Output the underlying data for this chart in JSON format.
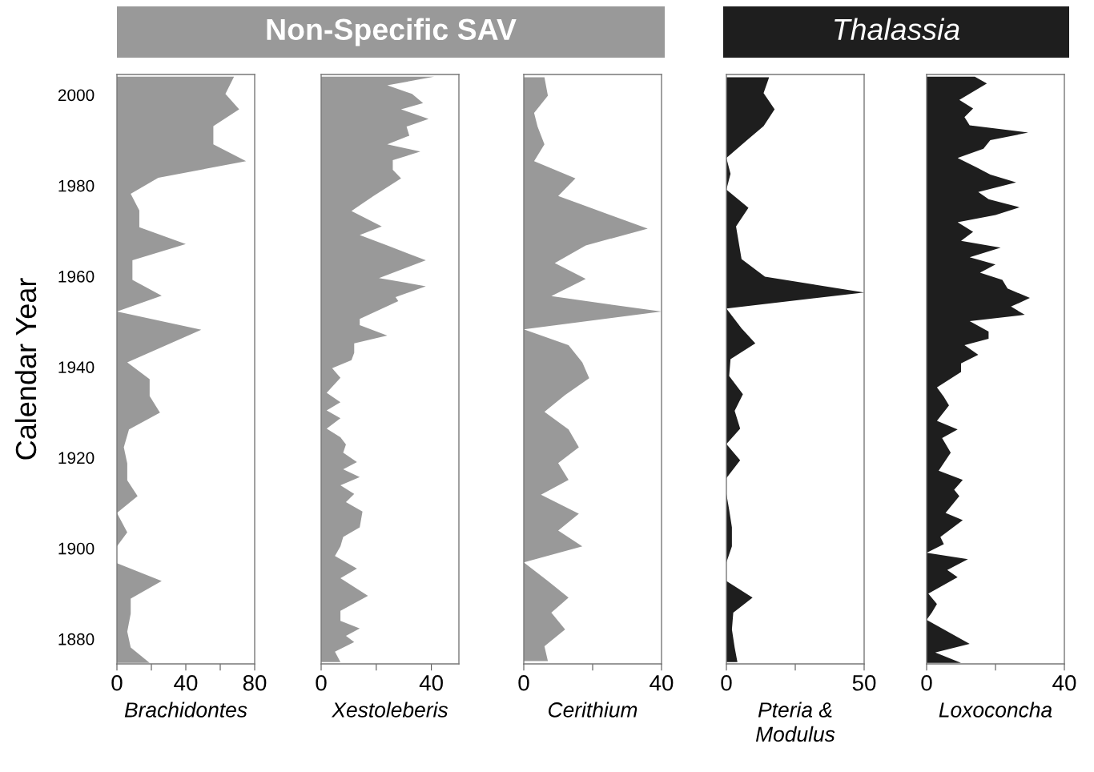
{
  "chart_data": [
    {
      "type": "area",
      "orientation": "horizontal",
      "xlabel": "Brachidontes",
      "ylabel": "Calendar Year",
      "color": "#999999",
      "x": [
        2004.0,
        2000.2,
        1996.8,
        1993.1,
        1989.1,
        1985.4,
        1981.7,
        1978.2,
        1974.5,
        1970.8,
        1967.1,
        1963.5,
        1959.2,
        1955.7,
        1952.2,
        1948.2,
        1941.0,
        1937.3,
        1933.6,
        1929.9,
        1926.2,
        1922.3,
        1918.7,
        1915.0,
        1911.5,
        1907.8,
        1903.5,
        1900.4,
        1896.7,
        1892.8,
        1888.9,
        1885.6,
        1881.6,
        1878.1,
        1874.7
      ],
      "values": [
        68,
        63,
        71,
        56,
        56,
        75,
        24,
        8,
        13,
        13,
        40,
        9,
        9,
        26,
        0,
        49,
        6,
        19,
        19,
        25,
        7,
        4,
        6,
        6,
        12,
        0,
        6,
        0,
        0,
        26,
        8,
        8,
        6,
        8,
        19
      ],
      "xlim": [
        0,
        80
      ],
      "xticks": [
        0,
        {
          "value": 20,
          "label": null
        },
        40,
        {
          "value": 60,
          "label": null
        },
        80
      ],
      "ylim": [
        1874.5,
        2004.5
      ],
      "yticks": [
        1880,
        1900,
        1920,
        1940,
        1960,
        1980,
        2000
      ],
      "grid": false,
      "legend": false
    },
    {
      "type": "area",
      "orientation": "horizontal",
      "title": "Non-Specific SAV",
      "xlabel": "Xestoleberis",
      "color": "#999999",
      "x": [
        2004.0,
        2002.1,
        2000.2,
        1998.2,
        1996.8,
        1994.7,
        1993.0,
        1991.0,
        1989.1,
        1987.5,
        1985.6,
        1983.5,
        1981.6,
        1977.7,
        1974.4,
        1971.0,
        1969.1,
        1966.8,
        1963.5,
        1959.6,
        1957.8,
        1955.4,
        1954.5,
        1950.6,
        1949.2,
        1946.9,
        1945.2,
        1943.1,
        1941.5,
        1939.7,
        1937.6,
        1934.3,
        1932.2,
        1930.4,
        1928.7,
        1926.4,
        1924.5,
        1922.9,
        1921.1,
        1919.0,
        1917.4,
        1915.7,
        1913.9,
        1912.0,
        1910.2,
        1908.1,
        1904.6,
        1902.5,
        1900.4,
        1898.3,
        1895.5,
        1893.4,
        1889.5,
        1886.2,
        1884.0,
        1882.3,
        1880.7,
        1879.3,
        1877.2,
        1874.9
      ],
      "values": [
        41,
        24,
        33,
        37,
        29,
        39,
        31,
        32,
        24,
        36,
        26,
        26,
        29,
        19,
        11,
        22,
        14,
        24,
        38,
        21,
        38,
        27,
        28,
        14,
        14,
        24,
        12,
        12,
        11,
        4,
        7,
        2,
        7,
        2,
        7,
        2,
        7,
        9,
        8,
        13,
        8,
        14,
        7,
        12,
        9,
        15,
        14,
        8,
        7,
        5,
        13,
        7,
        17,
        7,
        7,
        14,
        9,
        12,
        5,
        7
      ],
      "xlim": [
        0,
        50
      ],
      "xticks": [
        0,
        {
          "value": 20,
          "label": null
        },
        40
      ],
      "ylim": [
        1874.5,
        2004.5
      ],
      "tick_labels": "x",
      "grid": false,
      "legend": false
    },
    {
      "type": "area",
      "orientation": "horizontal",
      "xlabel": "Cerithium",
      "color": "#999999",
      "x": [
        2003.9,
        1999.8,
        1996.0,
        1993.0,
        1989.1,
        1985.4,
        1981.6,
        1977.7,
        1970.5,
        1966.8,
        1962.9,
        1959.4,
        1955.6,
        1952.2,
        1948.3,
        1944.8,
        1941.0,
        1937.5,
        1933.8,
        1930.1,
        1926.2,
        1922.3,
        1918.8,
        1915.1,
        1911.8,
        1907.6,
        1903.9,
        1900.4,
        1896.9,
        1892.8,
        1889.1,
        1885.8,
        1882.1,
        1878.4,
        1875.1
      ],
      "values": [
        6,
        7,
        3,
        4,
        6,
        3,
        15,
        10,
        36,
        18,
        9,
        18,
        8,
        40,
        0,
        13,
        17,
        19,
        12,
        6,
        13,
        16,
        10,
        13,
        5,
        16,
        10,
        17,
        0,
        7,
        13,
        8,
        12,
        6,
        7
      ],
      "xlim": [
        0,
        40
      ],
      "xticks": [
        0,
        {
          "value": 20,
          "label": null
        },
        40
      ],
      "ylim": [
        1874.5,
        2004.5
      ],
      "tick_labels": "x",
      "grid": false,
      "legend": false
    },
    {
      "type": "area",
      "orientation": "horizontal",
      "title": "Thalassia",
      "xlabel": "Pteria &\nModulus",
      "color": "#1e1e1e",
      "x": [
        2003.9,
        2000.4,
        1996.8,
        1993.1,
        1990.3,
        1986.1,
        1982.6,
        1979.1,
        1975.1,
        1971.0,
        1963.8,
        1959.9,
        1956.4,
        1952.9,
        1948.5,
        1945.2,
        1941.7,
        1938.0,
        1934.0,
        1930.3,
        1926.4,
        1923.0,
        1919.4,
        1915.5,
        1912.0,
        1908.5,
        1904.6,
        1900.4,
        1896.9,
        1892.8,
        1889.1,
        1885.8,
        1882.1,
        1878.1,
        1874.9
      ],
      "values": [
        15.5,
        13.5,
        17.5,
        13.5,
        8,
        0,
        1.5,
        0,
        8,
        3.5,
        5.5,
        14,
        50,
        0,
        5.5,
        10.5,
        1.5,
        1,
        6,
        3,
        5,
        0,
        5,
        0,
        0,
        1,
        2,
        2,
        0,
        0,
        9.5,
        2.5,
        2,
        3,
        4
      ],
      "xlim": [
        0,
        50
      ],
      "xticks": [
        0,
        {
          "value": 25,
          "label": null
        },
        50
      ],
      "ylim": [
        1874.5,
        2004.5
      ],
      "tick_labels": "x",
      "grid": false,
      "legend": false
    },
    {
      "type": "area",
      "orientation": "horizontal",
      "xlabel": "Loxoconcha",
      "color": "#1e1e1e",
      "x": [
        2004.0,
        2002.5,
        1998.9,
        1997.0,
        1995.1,
        1993.3,
        1991.7,
        1990.0,
        1988.1,
        1986.1,
        1984.0,
        1982.4,
        1980.7,
        1978.6,
        1977.0,
        1975.2,
        1973.5,
        1971.9,
        1969.8,
        1967.8,
        1966.3,
        1964.2,
        1962.6,
        1960.8,
        1959.2,
        1957.3,
        1955.2,
        1953.3,
        1951.5,
        1950.1,
        1947.8,
        1946.2,
        1944.8,
        1942.7,
        1940.8,
        1938.9,
        1935.5,
        1933.4,
        1931.5,
        1928.1,
        1926.2,
        1924.3,
        1921.1,
        1917.1,
        1915.1,
        1912.9,
        1911.5,
        1907.8,
        1906.2,
        1902.5,
        1900.9,
        1899.0,
        1897.6,
        1895.2,
        1893.6,
        1890.0,
        1887.7,
        1885.8,
        1884.2,
        1878.9,
        1877.0,
        1874.7
      ],
      "values": [
        14,
        17.5,
        9.5,
        13.5,
        11,
        12.5,
        29.5,
        18.5,
        16.5,
        9,
        14.5,
        18.5,
        26,
        15,
        18,
        27,
        20,
        9,
        13.5,
        10,
        21.5,
        12.5,
        20,
        15.5,
        22,
        23.5,
        30,
        24.5,
        28.5,
        12.5,
        18,
        18,
        11,
        15,
        10,
        10,
        3,
        5,
        6.5,
        3,
        9,
        4.5,
        7,
        3.5,
        10.5,
        8,
        9.5,
        5.5,
        10.5,
        4,
        5,
        0,
        12,
        6,
        9,
        0.5,
        3,
        1.5,
        0,
        12.5,
        2.5,
        10
      ],
      "xlim": [
        0,
        40
      ],
      "xticks": [
        0,
        {
          "value": 20,
          "label": null
        },
        40
      ],
      "ylim": [
        1874.5,
        2004.5
      ],
      "tick_labels": "x",
      "grid": false,
      "legend": false
    }
  ]
}
